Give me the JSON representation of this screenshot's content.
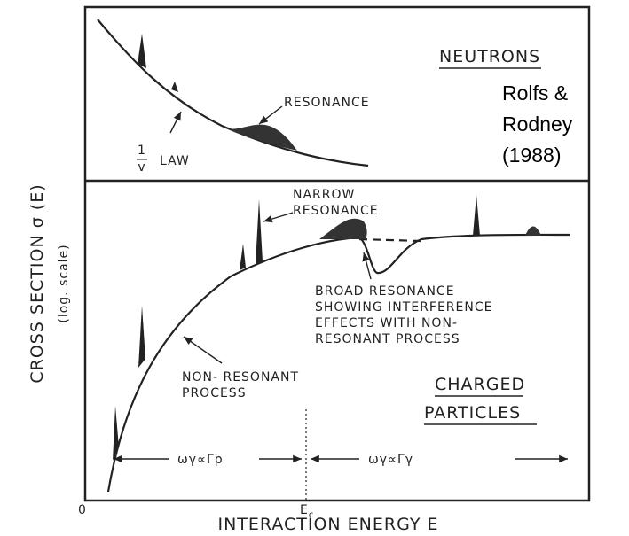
{
  "y_axis": {
    "label": "CROSS SECTION σ (E)",
    "sublabel": "(log. scale)"
  },
  "x_axis": {
    "label": "INTERACTION ENERGY E",
    "origin": "0",
    "critical": "E",
    "critical_sub": "c"
  },
  "top_panel": {
    "title": "NEUTRONS",
    "resonance": "RESONANCE",
    "law_num": "1",
    "law_den": "v",
    "law": "LAW",
    "citation": [
      "Rolfs &",
      "Rodney",
      "(1988)"
    ]
  },
  "bottom_panel": {
    "title": [
      "CHARGED",
      "PARTICLES"
    ],
    "narrow": [
      "NARROW",
      "RESONANCE"
    ],
    "broad": [
      "BROAD RESONANCE",
      "SHOWING INTERFERENCE",
      "EFFECTS WITH NON-",
      "RESONANT PROCESS"
    ],
    "nonresonant": [
      "NON- RESONANT",
      "PROCESS"
    ],
    "regime_low": "ωγ∝Γp",
    "regime_high": "ωγ∝Γγ"
  }
}
